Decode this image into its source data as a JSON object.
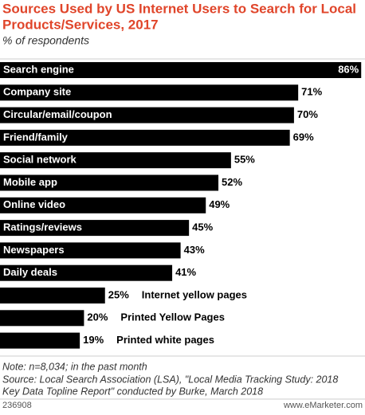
{
  "chart_data": {
    "type": "bar",
    "orientation": "horizontal",
    "title_lines": [
      "Sources Used by US Internet Users to Search for Local",
      "Products/Services, 2017"
    ],
    "subtitle": "% of respondents",
    "categories": [
      "Search engine",
      "Company site",
      "Circular/email/coupon",
      "Friend/family",
      "Social network",
      "Mobile app",
      "Online video",
      "Ratings/reviews",
      "Newspapers",
      "Daily deals",
      "Internet yellow pages",
      "Printed Yellow Pages",
      "Printed white pages"
    ],
    "values": [
      86,
      71,
      70,
      69,
      55,
      52,
      49,
      45,
      43,
      41,
      25,
      20,
      19
    ],
    "value_labels": [
      "86%",
      "71%",
      "70%",
      "69%",
      "55%",
      "52%",
      "49%",
      "45%",
      "43%",
      "41%",
      "25%",
      "20%",
      "19%"
    ],
    "color": "#000000",
    "notes": [
      "Note: n=8,034; in the past month",
      "Source: Local Search Association (LSA), \"Local Media Tracking Study: 2018",
      "Key Data Topline Report\" conducted by Burke, March 2018"
    ],
    "chart_id": "236908",
    "source_site": "www.eMarketer.com"
  }
}
